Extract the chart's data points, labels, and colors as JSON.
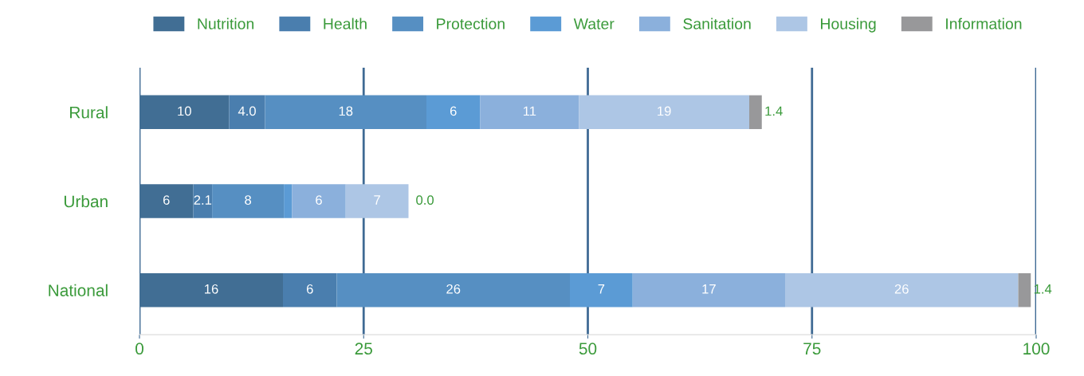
{
  "chart_data": {
    "type": "bar",
    "orientation": "horizontal",
    "stacked": true,
    "categories": [
      "Rural",
      "Urban",
      "National"
    ],
    "series": [
      {
        "name": "Nutrition",
        "color": "#416e94",
        "values": [
          10,
          6,
          16
        ],
        "value_labels": [
          "10",
          "6",
          "16"
        ]
      },
      {
        "name": "Health",
        "color": "#4a7eae",
        "values": [
          4.0,
          2.1,
          6
        ],
        "value_labels": [
          "4.0",
          "2.1",
          "6"
        ]
      },
      {
        "name": "Protection",
        "color": "#568fc2",
        "values": [
          18,
          8,
          26
        ],
        "value_labels": [
          "18",
          "8",
          "26"
        ]
      },
      {
        "name": "Water",
        "color": "#5b9bd5",
        "values": [
          6,
          0.9,
          7
        ],
        "value_labels": [
          "6",
          null,
          "7"
        ]
      },
      {
        "name": "Sanitation",
        "color": "#8bb0dc",
        "values": [
          11,
          6,
          17
        ],
        "value_labels": [
          "11",
          "6",
          "17"
        ]
      },
      {
        "name": "Housing",
        "color": "#adc6e5",
        "values": [
          19,
          7,
          26
        ],
        "value_labels": [
          "19",
          "7",
          "26"
        ]
      },
      {
        "name": "Information",
        "color": "#98989a",
        "values": [
          1.4,
          0.0,
          1.4
        ],
        "value_labels": [
          "1.4",
          "0.0",
          "1.4"
        ]
      }
    ],
    "xlim": [
      0,
      100
    ],
    "xticks": [
      0,
      25,
      50,
      75,
      100
    ],
    "grid": "x",
    "legend": "top"
  }
}
